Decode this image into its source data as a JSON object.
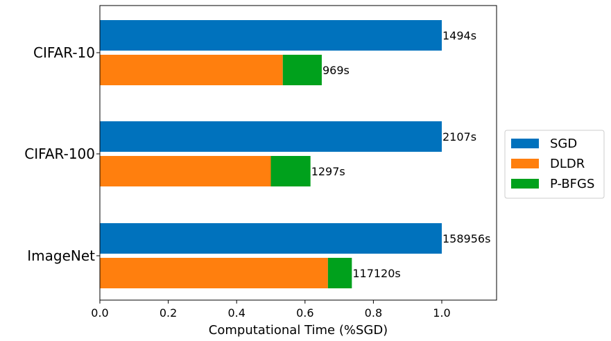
{
  "chart_data": {
    "type": "bar",
    "orientation": "horizontal",
    "stacked_groups": true,
    "categories": [
      "CIFAR-10",
      "CIFAR-100",
      "ImageNet"
    ],
    "xlabel": "Computational Time (%SGD)",
    "ylabel": "",
    "title": "",
    "xlim": [
      0,
      1.16
    ],
    "xticks": [
      0.0,
      0.2,
      0.4,
      0.6,
      0.8,
      1.0
    ],
    "xtick_labels": [
      "0.0",
      "0.2",
      "0.4",
      "0.6",
      "0.8",
      "1.0"
    ],
    "grid": false,
    "legend_position": "right",
    "series": [
      {
        "name": "SGD",
        "color": "#0072bd",
        "bar": "top",
        "values": [
          1.0,
          1.0,
          1.0
        ]
      },
      {
        "name": "DLDR",
        "color": "#ff7f0e",
        "bar": "bottom",
        "values": [
          0.535,
          0.5,
          0.667
        ]
      },
      {
        "name": "P-BFGS",
        "color": "#00a11c",
        "bar": "bottom",
        "stacked_on": "DLDR",
        "values": [
          0.114,
          0.116,
          0.07
        ]
      }
    ],
    "data_labels": {
      "top": [
        "1494s",
        "2107s",
        "158956s"
      ],
      "bottom": [
        "969s",
        "1297s",
        "117120s"
      ]
    }
  }
}
